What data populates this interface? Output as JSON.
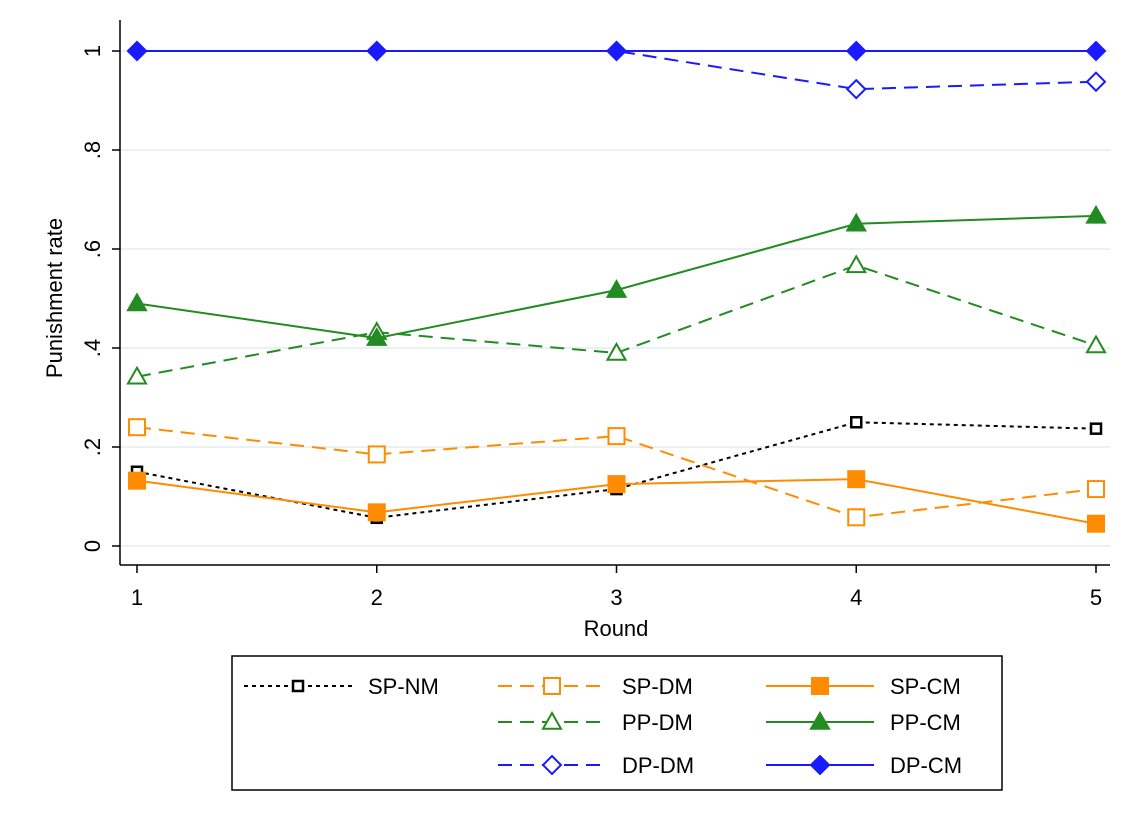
{
  "chart_data": {
    "type": "line",
    "xlabel": "Round",
    "ylabel": "Punishment rate",
    "x": [
      1,
      2,
      3,
      4,
      5
    ],
    "xticks": [
      "1",
      "2",
      "3",
      "4",
      "5"
    ],
    "ylim": [
      0,
      1
    ],
    "yticks": [
      {
        "value": 0,
        "label": "0"
      },
      {
        "value": 0.2,
        "label": ".2"
      },
      {
        "value": 0.4,
        "label": ".4"
      },
      {
        "value": 0.6,
        "label": ".6"
      },
      {
        "value": 0.8,
        "label": ".8"
      },
      {
        "value": 1,
        "label": "1"
      }
    ],
    "grid": "horizontal",
    "legend_position": "bottom",
    "series": [
      {
        "name": "SP-NM",
        "values": [
          0.15,
          0.057,
          0.115,
          0.25,
          0.237
        ],
        "color": "#000000",
        "dash": "dotted",
        "marker": "square-small-hollow"
      },
      {
        "name": "SP-DM",
        "values": [
          0.24,
          0.185,
          0.222,
          0.058,
          0.115
        ],
        "color": "#ff8c00",
        "dash": "dashed",
        "marker": "square-hollow"
      },
      {
        "name": "SP-CM",
        "values": [
          0.132,
          0.068,
          0.125,
          0.135,
          0.045
        ],
        "color": "#ff8c00",
        "dash": "solid",
        "marker": "square-filled"
      },
      {
        "name": "PP-DM",
        "values": [
          0.342,
          0.432,
          0.39,
          0.567,
          0.405
        ],
        "color": "#228b22",
        "dash": "dashed",
        "marker": "triangle-hollow"
      },
      {
        "name": "PP-CM",
        "values": [
          0.49,
          0.42,
          0.517,
          0.651,
          0.667
        ],
        "color": "#228b22",
        "dash": "solid",
        "marker": "triangle-filled"
      },
      {
        "name": "DP-DM",
        "values": [
          1.0,
          1.0,
          1.0,
          0.923,
          0.938
        ],
        "color": "#1a1aff",
        "dash": "dashed",
        "marker": "diamond-hollow"
      },
      {
        "name": "DP-CM",
        "values": [
          1.0,
          1.0,
          1.0,
          1.0,
          1.0
        ],
        "color": "#1a1aff",
        "dash": "solid",
        "marker": "diamond-filled"
      }
    ]
  }
}
